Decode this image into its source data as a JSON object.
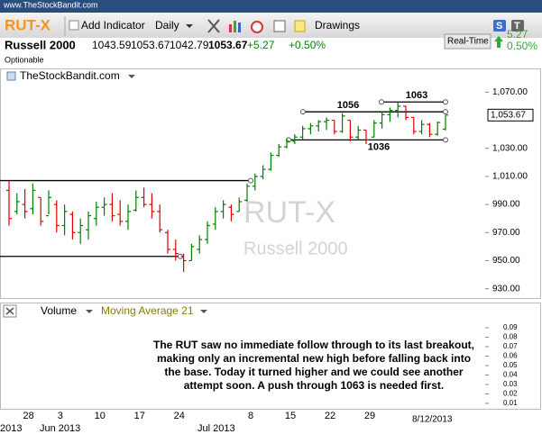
{
  "header": {
    "site": "www.TheStockBandit.com",
    "symbol": "RUT-X",
    "add_indicator": "Add Indicator",
    "period": "Daily",
    "drawings": "Drawings",
    "badge_s": "S",
    "badge_t": "T"
  },
  "quote": {
    "name": "Russell 2000",
    "open": "1043.59",
    "high": "1053.67",
    "low": "1042.79",
    "last": "1053.67",
    "change": "+5.27",
    "change_pct": "+0.50%",
    "optionable": "Optionable",
    "realtime": "Real-Time",
    "rt_change": "5.27",
    "rt_pct": "0.50%"
  },
  "chart_data": {
    "type": "ohlc",
    "source": "TheStockBandit.com",
    "categories": [
      null,
      null,
      "28",
      null,
      null,
      null,
      "3",
      null,
      null,
      null,
      null,
      "10",
      null,
      null,
      null,
      null,
      "17",
      null,
      null,
      null,
      null,
      "24",
      null,
      null,
      null,
      null,
      null,
      null,
      null,
      null,
      "8",
      null,
      null,
      null,
      null,
      "15",
      null,
      null,
      null,
      null,
      "22",
      null,
      null,
      null,
      null,
      "29",
      null,
      null,
      null,
      null,
      null,
      null,
      null,
      null,
      null,
      null
    ],
    "open": [
      1000,
      985,
      990,
      987,
      995,
      982,
      990,
      975,
      983,
      970,
      972,
      980,
      988,
      990,
      983,
      978,
      986,
      995,
      990,
      985,
      970,
      958,
      953,
      950,
      958,
      965,
      976,
      985,
      988,
      985,
      993,
      1003,
      1010,
      1015,
      1025,
      1031,
      1035,
      1038,
      1044,
      1046,
      1049,
      1050,
      1042,
      1050,
      1038,
      1043,
      1038,
      1048,
      1054,
      1057,
      1060,
      1052,
      1042,
      1047,
      1040,
      1043.59
    ],
    "high": [
      1007,
      998,
      1001,
      1005,
      995,
      1000,
      993,
      990,
      985,
      980,
      985,
      992,
      995,
      998,
      993,
      990,
      1000,
      1002,
      998,
      990,
      972,
      965,
      955,
      962,
      968,
      978,
      988,
      993,
      990,
      995,
      1005,
      1012,
      1018,
      1027,
      1033,
      1037,
      1040,
      1046,
      1048,
      1050,
      1052,
      1050,
      1055,
      1050,
      1046,
      1043,
      1050,
      1056,
      1059,
      1063,
      1060,
      1052,
      1050,
      1048,
      1049,
      1053.67
    ],
    "low": [
      975,
      983,
      980,
      983,
      975,
      983,
      970,
      968,
      965,
      962,
      965,
      975,
      982,
      978,
      975,
      972,
      985,
      988,
      980,
      970,
      955,
      950,
      942,
      950,
      955,
      962,
      972,
      980,
      978,
      985,
      992,
      1000,
      1008,
      1014,
      1024,
      1030,
      1033,
      1036,
      1040,
      1042,
      1043,
      1040,
      1041,
      1035,
      1036,
      1033,
      1038,
      1044,
      1049,
      1052,
      1050,
      1040,
      1040,
      1038,
      1039,
      1042.79
    ],
    "close": [
      980,
      992,
      985,
      1000,
      978,
      995,
      975,
      985,
      970,
      975,
      982,
      988,
      990,
      982,
      978,
      985,
      995,
      990,
      985,
      972,
      958,
      955,
      950,
      960,
      965,
      975,
      985,
      990,
      983,
      992,
      1003,
      1010,
      1015,
      1025,
      1031,
      1035,
      1038,
      1044,
      1046,
      1049,
      1050,
      1042,
      1053,
      1038,
      1043,
      1036,
      1048,
      1054,
      1057,
      1060,
      1052,
      1042,
      1047,
      1040,
      1048.4,
      1053.67
    ],
    "up_color": "#008000",
    "down_color": "#e00000",
    "ylim": [
      924,
      1076
    ],
    "yticks": [
      {
        "value": 930,
        "label": "930.00"
      },
      {
        "value": 950,
        "label": "950.00"
      },
      {
        "value": 970,
        "label": "970.00"
      },
      {
        "value": 990,
        "label": "990.00"
      },
      {
        "value": 1010,
        "label": "1,010.00"
      },
      {
        "value": 1030,
        "label": "1,030.00"
      },
      {
        "value": 1070,
        "label": "1,070.00"
      }
    ],
    "last_price": {
      "value": 1053.67,
      "label": "1,053.67"
    },
    "levels": [
      1063,
      1056,
      1036
    ],
    "trendlines": [
      1007,
      953
    ],
    "month_labels": [
      "2013",
      "Jun 2013",
      "Jul 2013"
    ],
    "last_date": "8/12/2013",
    "annotation": [
      "The RUT saw no immediate follow through to its last breakout,",
      "making only an incremental new high before falling back into",
      "the base.  Today it turned higher and we could see another",
      "attempt soon.  A push through 1063 is needed first."
    ]
  },
  "volume_panel": {
    "title": "Volume",
    "indicator": "Moving Average 21",
    "ylim": [
      0,
      0.1
    ],
    "yticks": [
      0.01,
      0.02,
      0.03,
      0.04,
      0.05,
      0.06,
      0.07,
      0.08,
      0.09
    ]
  }
}
